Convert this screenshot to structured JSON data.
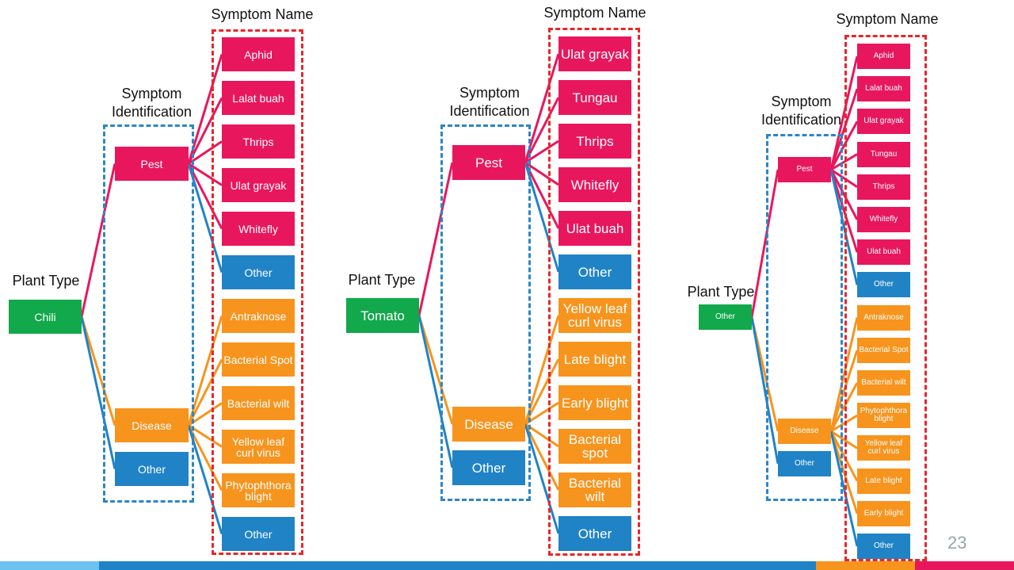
{
  "colors": {
    "pest": "#e8175d",
    "disease": "#f7941d",
    "other": "#2083c6",
    "plant": "#12a84c"
  },
  "page_number": "23",
  "labels": {
    "symptom_name": "Symptom Name",
    "symptom_identification": "Symptom\nIdentification",
    "plant_type": "Plant Type"
  },
  "trees": [
    {
      "plant": "Chili",
      "identification": [
        {
          "label": "Pest",
          "kind": "pest"
        },
        {
          "label": "Disease",
          "kind": "disease"
        },
        {
          "label": "Other",
          "kind": "other"
        }
      ],
      "symptoms": [
        {
          "label": "Aphid",
          "kind": "pest"
        },
        {
          "label": "Lalat buah",
          "kind": "pest"
        },
        {
          "label": "Thrips",
          "kind": "pest"
        },
        {
          "label": "Ulat grayak",
          "kind": "pest"
        },
        {
          "label": "Whitefly",
          "kind": "pest"
        },
        {
          "label": "Other",
          "kind": "other"
        },
        {
          "label": "Antraknose",
          "kind": "disease"
        },
        {
          "label": "Bacterial Spot",
          "kind": "disease"
        },
        {
          "label": "Bacterial wilt",
          "kind": "disease"
        },
        {
          "label": "Yellow leaf\ncurl virus",
          "kind": "disease"
        },
        {
          "label": "Phytophthora\nblight",
          "kind": "disease"
        },
        {
          "label": "Other",
          "kind": "other"
        }
      ]
    },
    {
      "plant": "Tomato",
      "identification": [
        {
          "label": "Pest",
          "kind": "pest"
        },
        {
          "label": "Disease",
          "kind": "disease"
        },
        {
          "label": "Other",
          "kind": "other"
        }
      ],
      "symptoms": [
        {
          "label": "Ulat grayak",
          "kind": "pest"
        },
        {
          "label": "Tungau",
          "kind": "pest"
        },
        {
          "label": "Thrips",
          "kind": "pest"
        },
        {
          "label": "Whitefly",
          "kind": "pest"
        },
        {
          "label": "Ulat buah",
          "kind": "pest"
        },
        {
          "label": "Other",
          "kind": "other"
        },
        {
          "label": "Yellow leaf\ncurl virus",
          "kind": "disease"
        },
        {
          "label": "Late blight",
          "kind": "disease"
        },
        {
          "label": "Early blight",
          "kind": "disease"
        },
        {
          "label": "Bacterial\nspot",
          "kind": "disease"
        },
        {
          "label": "Bacterial\nwilt",
          "kind": "disease"
        },
        {
          "label": "Other",
          "kind": "other"
        }
      ]
    },
    {
      "plant": "Other",
      "identification": [
        {
          "label": "Pest",
          "kind": "pest"
        },
        {
          "label": "Disease",
          "kind": "disease"
        },
        {
          "label": "Other",
          "kind": "other"
        }
      ],
      "symptoms": [
        {
          "label": "Aphid",
          "kind": "pest"
        },
        {
          "label": "Lalat buah",
          "kind": "pest"
        },
        {
          "label": "Ulat grayak",
          "kind": "pest"
        },
        {
          "label": "Tungau",
          "kind": "pest"
        },
        {
          "label": "Thrips",
          "kind": "pest"
        },
        {
          "label": "Whitefly",
          "kind": "pest"
        },
        {
          "label": "Ulat buah",
          "kind": "pest"
        },
        {
          "label": "Other",
          "kind": "other"
        },
        {
          "label": "Antraknose",
          "kind": "disease"
        },
        {
          "label": "Bacterial Spot",
          "kind": "disease"
        },
        {
          "label": "Bacterial wilt",
          "kind": "disease"
        },
        {
          "label": "Phytophthora\nblight",
          "kind": "disease"
        },
        {
          "label": "Yellow leaf\ncurl virus",
          "kind": "disease"
        },
        {
          "label": "Late blight",
          "kind": "disease"
        },
        {
          "label": "Early blight",
          "kind": "disease"
        },
        {
          "label": "Other",
          "kind": "other"
        }
      ]
    }
  ]
}
